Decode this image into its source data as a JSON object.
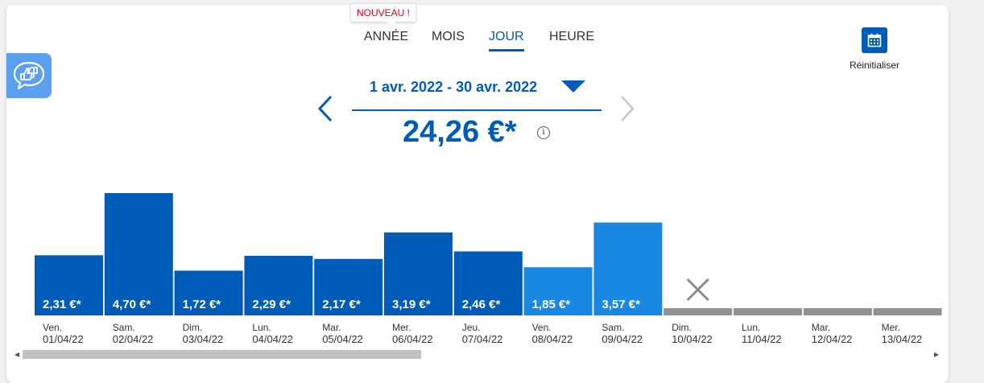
{
  "badge": "NOUVEAU !",
  "tabs": [
    {
      "label": "ANNÉE",
      "active": false
    },
    {
      "label": "MOIS",
      "active": false
    },
    {
      "label": "JOUR",
      "active": true
    },
    {
      "label": "HEURE",
      "active": false
    }
  ],
  "reset": {
    "label": "Réinitialiser",
    "icon": "calendar-icon"
  },
  "feedback": {
    "icon": "thumbs-up-down-icon"
  },
  "period": {
    "range": "1 avr. 2022 - 30 avr. 2022"
  },
  "total": {
    "value": "24,26 €*",
    "info_icon": "i"
  },
  "colors": {
    "primary": "#005cb9",
    "bar_weekday": "#005cb9",
    "bar_weekend": "#1888e2",
    "no_data": "#919191",
    "feedback_bg": "#5b9ff0"
  },
  "chart_data": {
    "type": "bar",
    "currency": "€",
    "categories": [
      {
        "day": "Ven.",
        "date": "01/04/22"
      },
      {
        "day": "Sam.",
        "date": "02/04/22"
      },
      {
        "day": "Dim.",
        "date": "03/04/22"
      },
      {
        "day": "Lun.",
        "date": "04/04/22"
      },
      {
        "day": "Mar.",
        "date": "05/04/22"
      },
      {
        "day": "Mer.",
        "date": "06/04/22"
      },
      {
        "day": "Jeu.",
        "date": "07/04/22"
      },
      {
        "day": "Ven.",
        "date": "08/04/22"
      },
      {
        "day": "Sam.",
        "date": "09/04/22"
      },
      {
        "day": "Dim.",
        "date": "10/04/22"
      },
      {
        "day": "Lun.",
        "date": "11/04/22"
      },
      {
        "day": "Mar.",
        "date": "12/04/22"
      },
      {
        "day": "Mer.",
        "date": "13/04/22"
      }
    ],
    "values": [
      2.31,
      4.7,
      1.72,
      2.29,
      2.17,
      3.19,
      2.46,
      1.85,
      3.57,
      null,
      null,
      null,
      null
    ],
    "labels": [
      "2,31 €*",
      "4,70 €*",
      "1,72 €*",
      "2,29 €*",
      "2,17 €*",
      "3,19 €*",
      "2,46 €*",
      "1,85 €*",
      "3,57 €*",
      "",
      "",
      "",
      ""
    ],
    "highlight": [
      false,
      false,
      false,
      false,
      false,
      false,
      false,
      true,
      true,
      false,
      false,
      false,
      false
    ],
    "no_data_marker": [
      false,
      false,
      false,
      false,
      false,
      false,
      false,
      false,
      false,
      true,
      false,
      false,
      false
    ],
    "ylim": [
      0,
      4.7
    ]
  }
}
